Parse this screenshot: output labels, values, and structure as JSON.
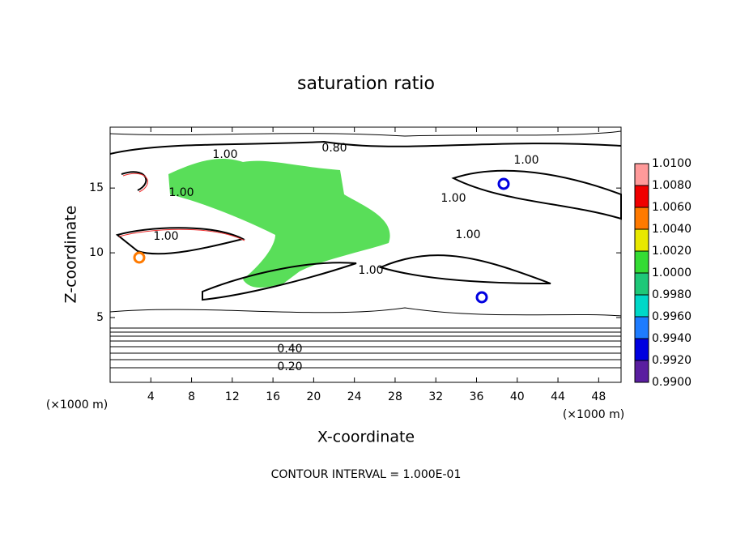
{
  "chart_data": {
    "type": "contour",
    "title": "saturation ratio",
    "x_label": "X-coordinate",
    "y_label": "Z-coordinate",
    "x_unit": "(×1000 m)",
    "y_unit": "(×1000 m)",
    "footer": "CONTOUR INTERVAL = 1.000E-01",
    "xlim": [
      0,
      50.2
    ],
    "ylim": [
      0,
      19.7
    ],
    "xticks": [
      4,
      8,
      12,
      16,
      20,
      24,
      28,
      32,
      36,
      40,
      44,
      48
    ],
    "yticks": [
      5,
      10,
      15
    ],
    "contour_labels": [
      "1.00",
      "0.80",
      "1.00",
      "1.00",
      "1.00",
      "1.00",
      "1.00",
      "1.00",
      "0.40",
      "0.20"
    ],
    "colorbar": {
      "lim": [
        0.99,
        1.01
      ],
      "ticks": [
        {
          "value": 1.01,
          "label": "1.0100"
        },
        {
          "value": 1.008,
          "label": "1.0080"
        },
        {
          "value": 1.006,
          "label": "1.0060"
        },
        {
          "value": 1.004,
          "label": "1.0040"
        },
        {
          "value": 1.002,
          "label": "1.0020"
        },
        {
          "value": 1.0,
          "label": "1.0000"
        },
        {
          "value": 0.998,
          "label": "0.9980"
        },
        {
          "value": 0.996,
          "label": "0.9960"
        },
        {
          "value": 0.994,
          "label": "0.9940"
        },
        {
          "value": 0.992,
          "label": "0.9920"
        },
        {
          "value": 0.99,
          "label": "0.9900"
        }
      ],
      "colors": [
        "#ff9a9a",
        "#f00000",
        "#ff7a00",
        "#e8e800",
        "#34dc34",
        "#1ec878",
        "#00d8c8",
        "#1e7cff",
        "#0000e0",
        "#5a1ea0"
      ]
    }
  }
}
